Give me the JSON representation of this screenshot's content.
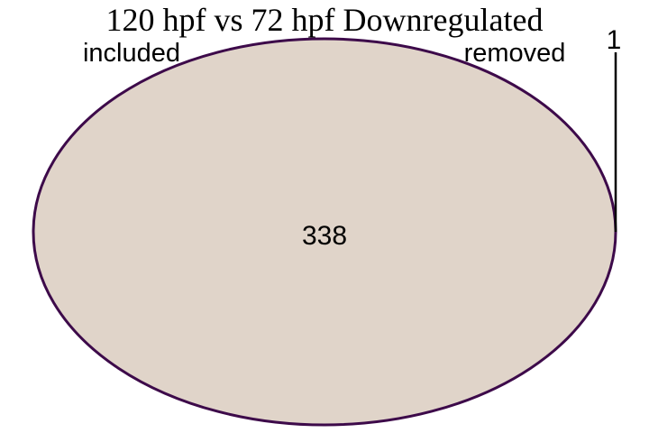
{
  "title": "120 hpf vs 72 hpf Downregulated",
  "sets": {
    "included": {
      "label": "included",
      "color": "#e0d4c9",
      "stroke": "#3d0a4a"
    },
    "removed": {
      "label": "removed"
    }
  },
  "regions": {
    "included_only": "338",
    "removed_only": "1"
  }
}
